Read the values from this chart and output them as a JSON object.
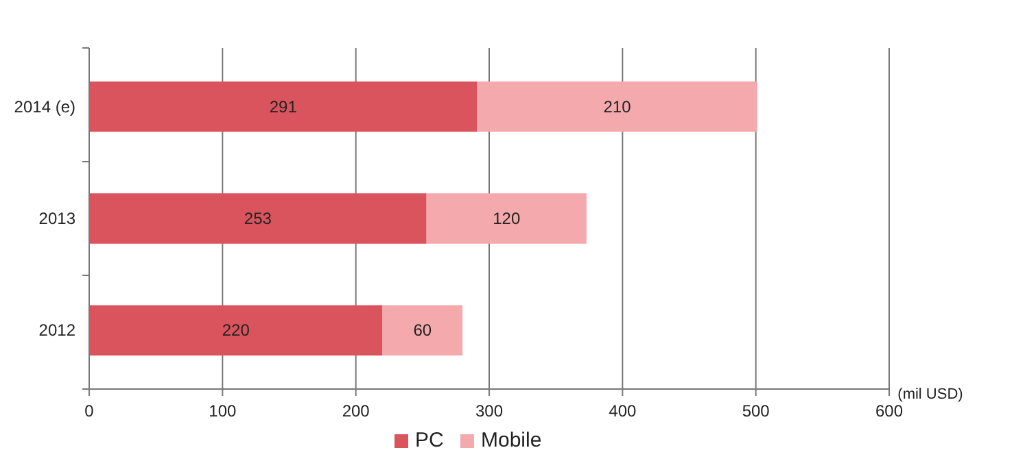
{
  "chart_data": {
    "type": "bar",
    "orientation": "horizontal",
    "stacked": true,
    "categories": [
      "2014 (e)",
      "2013",
      "2012"
    ],
    "series": [
      {
        "name": "PC",
        "color": "#d9545c",
        "values": [
          291,
          253,
          220
        ]
      },
      {
        "name": "Mobile",
        "color": "#f4a9ad",
        "values": [
          210,
          120,
          60
        ]
      }
    ],
    "xlim": [
      0,
      600
    ],
    "xticks": [
      0,
      100,
      200,
      300,
      400,
      500,
      600
    ],
    "xlabel": "(mil USD)",
    "grid": "x",
    "legend": "bottom",
    "data_labels": true
  }
}
